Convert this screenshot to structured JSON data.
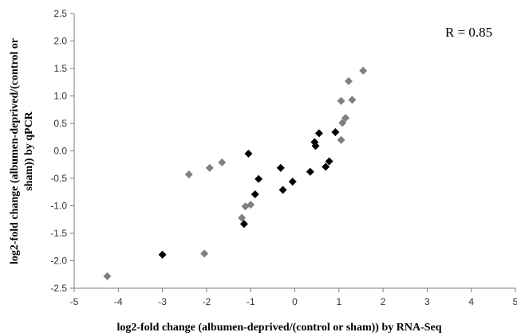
{
  "chart_data": {
    "type": "scatter",
    "title": "",
    "xlabel": "log2-fold change (albumen-deprived/(control  or sham)) by RNA-Seq",
    "ylabel_lines": [
      "log2-fold change (albumen-deprived/(control or",
      "sham)) by qPCR"
    ],
    "xlim": [
      -5,
      5
    ],
    "ylim": [
      -2.5,
      2.5
    ],
    "xticks": [
      "-5",
      "-4",
      "-3",
      "-2",
      "-1",
      "0",
      "1",
      "2",
      "3",
      "4",
      "5"
    ],
    "yticks": [
      "2.5",
      "2.0",
      "1.5",
      "1.0",
      "0.5",
      "0.0",
      "-0.5",
      "-1.0",
      "-1.5",
      "-2.0",
      "-2.5"
    ],
    "grid": false,
    "annotation": "R = 0.85",
    "series": [
      {
        "color": "#000000",
        "marker": "diamond",
        "points": [
          [
            -3.0,
            -1.89
          ],
          [
            -1.15,
            -1.33
          ],
          [
            -1.05,
            -0.05
          ],
          [
            -0.9,
            -0.79
          ],
          [
            -0.82,
            -0.51
          ],
          [
            -0.32,
            -0.31
          ],
          [
            -0.27,
            -0.71
          ],
          [
            -0.05,
            -0.56
          ],
          [
            0.35,
            -0.38
          ],
          [
            0.45,
            0.16
          ],
          [
            0.47,
            0.09
          ],
          [
            0.55,
            0.32
          ],
          [
            0.7,
            -0.29
          ],
          [
            0.78,
            -0.19
          ],
          [
            0.92,
            0.34
          ]
        ]
      },
      {
        "color": "#808080",
        "marker": "diamond",
        "points": [
          [
            -4.25,
            -2.28
          ],
          [
            -2.4,
            -0.43
          ],
          [
            -2.05,
            -1.87
          ],
          [
            -1.93,
            -0.31
          ],
          [
            -1.65,
            -0.21
          ],
          [
            -1.2,
            -1.22
          ],
          [
            -1.12,
            -1.01
          ],
          [
            -1.0,
            -0.98
          ],
          [
            1.05,
            0.91
          ],
          [
            1.08,
            0.51
          ],
          [
            1.05,
            0.2
          ],
          [
            1.15,
            0.6
          ],
          [
            1.22,
            1.27
          ],
          [
            1.3,
            0.93
          ],
          [
            1.55,
            1.46
          ]
        ]
      }
    ]
  }
}
